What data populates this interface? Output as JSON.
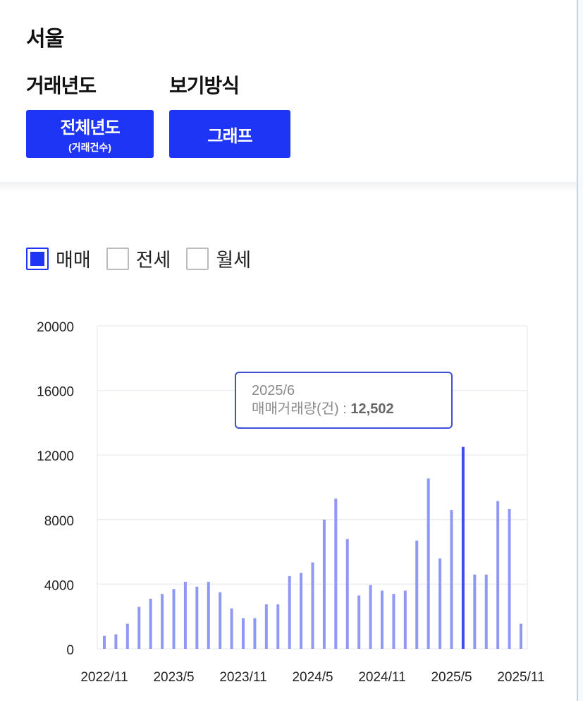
{
  "region": "서울",
  "filters": {
    "year_label": "거래년도",
    "view_label": "보기방식",
    "year_button": "전체년도",
    "year_button_sub": "(거래건수)",
    "view_button": "그래프"
  },
  "legend": [
    {
      "label": "매매",
      "checked": true
    },
    {
      "label": "전세",
      "checked": false
    },
    {
      "label": "월세",
      "checked": false
    }
  ],
  "tooltip": {
    "date": "2025/6",
    "label": "매매거래량(건)",
    "separator": " : ",
    "value": "12,502"
  },
  "colors": {
    "accent": "#1f35f5",
    "bar": "#8f98f3",
    "bar_highlight": "#3d4ef0"
  },
  "chart_data": {
    "type": "bar",
    "ylim": [
      0,
      20000
    ],
    "yticks": [
      "20000",
      "16000",
      "12000",
      "8000",
      "4000",
      "0"
    ],
    "xtick_labels": [
      "2022/11",
      "2023/5",
      "2023/11",
      "2024/5",
      "2024/11",
      "2025/5",
      "2025/11"
    ],
    "categories": [
      "2022/11",
      "2022/12",
      "2023/1",
      "2023/2",
      "2023/3",
      "2023/4",
      "2023/5",
      "2023/6",
      "2023/7",
      "2023/8",
      "2023/9",
      "2023/10",
      "2023/11",
      "2023/12",
      "2024/1",
      "2024/2",
      "2024/3",
      "2024/4",
      "2024/5",
      "2024/6",
      "2024/7",
      "2024/8",
      "2024/9",
      "2024/10",
      "2024/11",
      "2024/12",
      "2025/1",
      "2025/2",
      "2025/3",
      "2025/4",
      "2025/5",
      "2025/6",
      "2025/7",
      "2025/8",
      "2025/9",
      "2025/10",
      "2025/11"
    ],
    "series": [
      {
        "name": "매매",
        "values": [
          800,
          900,
          1550,
          2600,
          3100,
          3400,
          3700,
          4150,
          3850,
          4150,
          3500,
          2500,
          1900,
          1900,
          2750,
          2750,
          4500,
          4700,
          5350,
          8000,
          9300,
          6800,
          3300,
          3950,
          3600,
          3400,
          3600,
          6700,
          10550,
          5600,
          8600,
          12502,
          4600,
          4600,
          9150,
          8650,
          1550
        ]
      }
    ],
    "highlight": "2025/6",
    "grid": true
  }
}
